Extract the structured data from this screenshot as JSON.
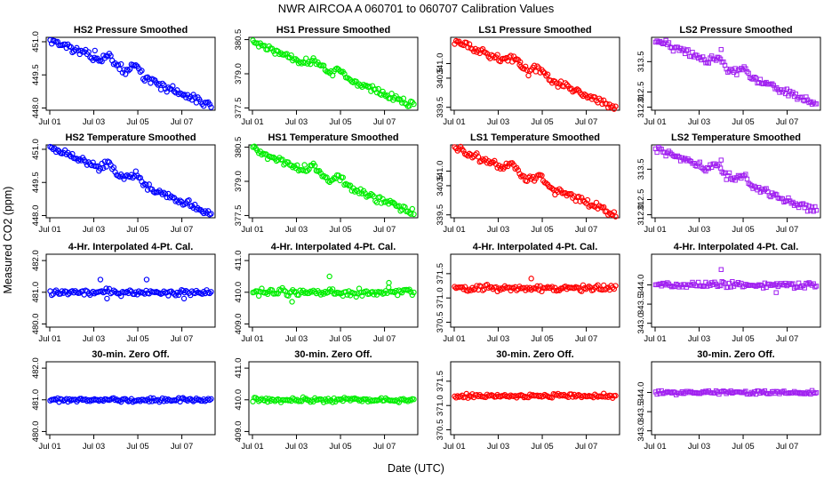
{
  "title": "NWR   AIRCOA A   060701 to 060707   Calibration Values",
  "ylabel": "Measured CO2 (ppm)",
  "xlabel": "Date (UTC)",
  "x_tick_labels": [
    "Jul 01",
    "Jul 03",
    "Jul 05",
    "Jul 07"
  ],
  "colors": {
    "HS2": "#0000ff",
    "HS1": "#00ee00",
    "LS1": "#ff0000",
    "LS2": "#a020f0"
  },
  "chart_data": [
    {
      "type": "scatter",
      "row": 0,
      "col": 0,
      "title": "HS2 Pressure Smoothed",
      "series": "HS2",
      "ylim": [
        447.9,
        451.2
      ],
      "yticks": [
        "448.0",
        "449.5",
        "451.0"
      ],
      "ytick_values": [
        448.0,
        449.5,
        451.0
      ],
      "marker": "circle",
      "trend": [
        451.1,
        448.1
      ],
      "noise": 0.1,
      "bumps": [
        [
          2.7,
          0.35
        ],
        [
          3.9,
          0.4
        ]
      ],
      "outliers": [
        [
          2.05,
          450.6
        ]
      ],
      "x_range_days": [
        0,
        7.35
      ]
    },
    {
      "type": "scatter",
      "row": 0,
      "col": 1,
      "title": "HS1 Pressure Smoothed",
      "series": "HS1",
      "ylim": [
        377.4,
        380.6
      ],
      "yticks": [
        "377.5",
        "379.0",
        "380.5"
      ],
      "ytick_values": [
        377.5,
        379.0,
        380.5
      ],
      "marker": "circle",
      "trend": [
        380.4,
        377.6
      ],
      "noise": 0.1,
      "bumps": [
        [
          2.8,
          0.3
        ],
        [
          4.0,
          0.3
        ]
      ],
      "outliers": [],
      "x_range_days": [
        0,
        7.35
      ]
    },
    {
      "type": "scatter",
      "row": 0,
      "col": 2,
      "title": "LS1 Pressure Smoothed",
      "series": "LS1",
      "ylim": [
        339.4,
        341.9
      ],
      "yticks": [
        "339.5",
        "340.5",
        "341.0"
      ],
      "ytick_values": [
        339.5,
        340.5,
        341.0
      ],
      "marker": "circle",
      "trend": [
        341.8,
        339.5
      ],
      "noise": 0.08,
      "bumps": [
        [
          2.6,
          0.25
        ],
        [
          3.9,
          0.25
        ]
      ],
      "outliers": [
        [
          3.0,
          341.05
        ]
      ],
      "x_range_days": [
        0,
        7.35
      ]
    },
    {
      "type": "scatter",
      "row": 0,
      "col": 3,
      "title": "LS2 Pressure Smoothed",
      "series": "LS2",
      "ylim": [
        311.9,
        314.3
      ],
      "yticks": [
        "312.0",
        "312.5",
        "313.5"
      ],
      "ytick_values": [
        312.0,
        312.5,
        313.5
      ],
      "marker": "square",
      "trend": [
        314.2,
        312.1
      ],
      "noise": 0.08,
      "bumps": [
        [
          2.8,
          0.25
        ],
        [
          4.0,
          0.25
        ]
      ],
      "outliers": [
        [
          3.0,
          313.9
        ]
      ],
      "x_range_days": [
        0,
        7.35
      ]
    },
    {
      "type": "scatter",
      "row": 1,
      "col": 0,
      "title": "HS2 Temperature Smoothed",
      "series": "HS2",
      "ylim": [
        447.9,
        451.2
      ],
      "yticks": [
        "448.0",
        "449.5",
        "451.0"
      ],
      "ytick_values": [
        448.0,
        449.5,
        451.0
      ],
      "marker": "circle",
      "trend": [
        451.1,
        448.1
      ],
      "noise": 0.1,
      "bumps": [
        [
          2.7,
          0.35
        ],
        [
          3.9,
          0.4
        ]
      ],
      "outliers": [],
      "x_range_days": [
        0,
        7.35
      ]
    },
    {
      "type": "scatter",
      "row": 1,
      "col": 1,
      "title": "HS1 Temperature Smoothed",
      "series": "HS1",
      "ylim": [
        377.4,
        380.6
      ],
      "yticks": [
        "377.5",
        "379.0",
        "380.5"
      ],
      "ytick_values": [
        377.5,
        379.0,
        380.5
      ],
      "marker": "circle",
      "trend": [
        380.4,
        377.6
      ],
      "noise": 0.1,
      "bumps": [
        [
          2.8,
          0.3
        ],
        [
          4.0,
          0.3
        ]
      ],
      "outliers": [],
      "x_range_days": [
        0,
        7.35
      ]
    },
    {
      "type": "scatter",
      "row": 1,
      "col": 2,
      "title": "LS1 Temperature Smoothed",
      "series": "LS1",
      "ylim": [
        339.4,
        341.9
      ],
      "yticks": [
        "339.5",
        "340.5",
        "341.0"
      ],
      "ytick_values": [
        339.5,
        340.5,
        341.0
      ],
      "marker": "circle",
      "trend": [
        341.8,
        339.5
      ],
      "noise": 0.08,
      "bumps": [
        [
          2.6,
          0.25
        ],
        [
          3.9,
          0.25
        ]
      ],
      "outliers": [],
      "x_range_days": [
        0,
        7.35
      ]
    },
    {
      "type": "scatter",
      "row": 1,
      "col": 3,
      "title": "LS2 Temperature Smoothed",
      "series": "LS2",
      "ylim": [
        311.9,
        314.3
      ],
      "yticks": [
        "312.0",
        "312.5",
        "313.5"
      ],
      "ytick_values": [
        312.0,
        312.5,
        313.5
      ],
      "marker": "square",
      "trend": [
        314.2,
        312.1
      ],
      "noise": 0.08,
      "bumps": [
        [
          2.8,
          0.25
        ],
        [
          4.0,
          0.25
        ]
      ],
      "outliers": [
        [
          3.0,
          313.8
        ]
      ],
      "x_range_days": [
        0,
        7.35
      ]
    },
    {
      "type": "scatter",
      "row": 2,
      "col": 0,
      "title": "4-Hr. Interpolated 4-Pt. Cal.",
      "series": "HS2",
      "ylim": [
        479.9,
        482.2
      ],
      "yticks": [
        "480.0",
        "481.0",
        "482.0"
      ],
      "ytick_values": [
        480.0,
        481.0,
        482.0
      ],
      "marker": "circle",
      "trend": [
        481.0,
        481.0
      ],
      "noise": 0.06,
      "bumps": [],
      "outliers": [
        [
          2.3,
          481.4
        ],
        [
          2.6,
          480.8
        ],
        [
          4.4,
          481.4
        ],
        [
          6.1,
          480.8
        ]
      ],
      "x_range_days": [
        0,
        7.35
      ]
    },
    {
      "type": "scatter",
      "row": 2,
      "col": 1,
      "title": "4-Hr. Interpolated 4-Pt. Cal.",
      "series": "HS1",
      "ylim": [
        408.9,
        411.2
      ],
      "yticks": [
        "409.0",
        "410.0",
        "411.0"
      ],
      "ytick_values": [
        409.0,
        410.0,
        411.0
      ],
      "marker": "circle",
      "trend": [
        410.0,
        410.0
      ],
      "noise": 0.07,
      "bumps": [],
      "outliers": [
        [
          1.8,
          409.7
        ],
        [
          3.5,
          410.5
        ],
        [
          6.2,
          410.3
        ]
      ],
      "x_range_days": [
        0,
        7.35
      ]
    },
    {
      "type": "scatter",
      "row": 2,
      "col": 2,
      "title": "4-Hr. Interpolated 4-Pt. Cal.",
      "series": "LS1",
      "ylim": [
        370.4,
        371.9
      ],
      "yticks": [
        "370.5",
        "371.0",
        "371.5"
      ],
      "ytick_values": [
        370.5,
        371.0,
        371.5
      ],
      "marker": "circle",
      "trend": [
        371.2,
        371.2
      ],
      "noise": 0.04,
      "bumps": [],
      "outliers": [
        [
          3.5,
          371.4
        ]
      ],
      "x_range_days": [
        0,
        7.35
      ]
    },
    {
      "type": "scatter",
      "row": 2,
      "col": 3,
      "title": "4-Hr. Interpolated 4-Pt. Cal.",
      "series": "LS2",
      "ylim": [
        342.9,
        344.8
      ],
      "yticks": [
        "343.0",
        "343.5",
        "344.0"
      ],
      "ytick_values": [
        343.0,
        343.5,
        344.0
      ],
      "marker": "square",
      "trend": [
        344.0,
        344.0
      ],
      "noise": 0.05,
      "bumps": [],
      "outliers": [
        [
          3.0,
          344.4
        ],
        [
          5.5,
          343.8
        ]
      ],
      "x_range_days": [
        0,
        7.35
      ]
    },
    {
      "type": "scatter",
      "row": 3,
      "col": 0,
      "title": "30-min. Zero Off.",
      "series": "HS2",
      "ylim": [
        479.9,
        482.2
      ],
      "yticks": [
        "480.0",
        "481.0",
        "482.0"
      ],
      "ytick_values": [
        480.0,
        481.0,
        482.0
      ],
      "marker": "circle",
      "trend": [
        481.0,
        481.0
      ],
      "noise": 0.04,
      "bumps": [],
      "outliers": [],
      "x_range_days": [
        0,
        7.35
      ]
    },
    {
      "type": "scatter",
      "row": 3,
      "col": 1,
      "title": "30-min. Zero Off.",
      "series": "HS1",
      "ylim": [
        408.9,
        411.2
      ],
      "yticks": [
        "409.0",
        "410.0",
        "411.0"
      ],
      "ytick_values": [
        409.0,
        410.0,
        411.0
      ],
      "marker": "circle",
      "trend": [
        410.0,
        410.0
      ],
      "noise": 0.04,
      "bumps": [],
      "outliers": [],
      "x_range_days": [
        0,
        7.35
      ]
    },
    {
      "type": "scatter",
      "row": 3,
      "col": 2,
      "title": "30-min. Zero Off.",
      "series": "LS1",
      "ylim": [
        370.4,
        371.9
      ],
      "yticks": [
        "370.5",
        "371.0",
        "371.5"
      ],
      "ytick_values": [
        370.5,
        371.0,
        371.5
      ],
      "marker": "circle",
      "trend": [
        371.2,
        371.2
      ],
      "noise": 0.025,
      "bumps": [],
      "outliers": [],
      "x_range_days": [
        0,
        7.35
      ]
    },
    {
      "type": "scatter",
      "row": 3,
      "col": 3,
      "title": "30-min. Zero Off.",
      "series": "LS2",
      "ylim": [
        342.9,
        344.8
      ],
      "yticks": [
        "343.0",
        "343.5",
        "344.0"
      ],
      "ytick_values": [
        343.0,
        343.5,
        344.0
      ],
      "marker": "square",
      "trend": [
        344.0,
        344.0
      ],
      "noise": 0.03,
      "bumps": [],
      "outliers": [],
      "x_range_days": [
        0,
        7.35
      ]
    }
  ]
}
